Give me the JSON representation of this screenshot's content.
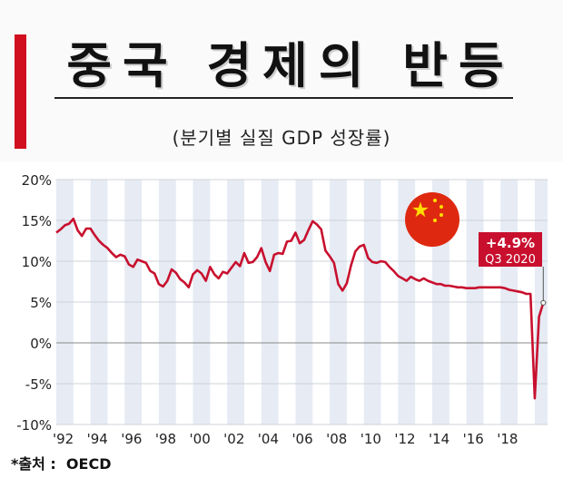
{
  "header": {
    "title": "중국 경제의 반등",
    "subtitle": "(분기별 실질 GDP 성장률)"
  },
  "footer": {
    "source": "*출처 :  OECD"
  },
  "colors": {
    "line": "#c8102e",
    "accent_bar": "#d0101e",
    "band": "#e6ebf4",
    "flag_red": "#de2910",
    "flag_star": "#ffde00"
  },
  "icons": {
    "flag": "china-flag-icon"
  },
  "chart_data": {
    "type": "line",
    "y_tick_labels": [
      "20%",
      "15%",
      "10%",
      "5%",
      "0%",
      "-5%",
      "-10%"
    ],
    "y_ticks": [
      20,
      15,
      10,
      5,
      0,
      -5,
      -10
    ],
    "ylim": [
      -10,
      20
    ],
    "x_tick_labels": [
      "'92",
      "'94",
      "'96",
      "'98",
      "'00",
      "'02",
      "'04",
      "'06",
      "'08",
      "'10",
      "'12",
      "'14",
      "'16",
      "'18"
    ],
    "x_ticks": [
      1992,
      1994,
      1996,
      1998,
      2000,
      2002,
      2004,
      2006,
      2008,
      2010,
      2012,
      2014,
      2016,
      2018
    ],
    "xlim": [
      1992,
      2020.75
    ],
    "annotation": {
      "value": "+4.9%",
      "period": "Q3 2020",
      "x": 2020.5,
      "y": 4.9
    },
    "grid": "horizontal",
    "series": [
      {
        "x": [
          1992,
          1992.25,
          1992.5,
          1992.75,
          1993,
          1993.25,
          1993.5,
          1993.75,
          1994,
          1994.25,
          1994.5,
          1994.75,
          1995,
          1995.25,
          1995.5,
          1995.75,
          1996,
          1996.25,
          1996.5,
          1996.75,
          1997,
          1997.25,
          1997.5,
          1997.75,
          1998,
          1998.25,
          1998.5,
          1998.75,
          1999,
          1999.25,
          1999.5,
          1999.75,
          2000,
          2000.25,
          2000.5,
          2000.75,
          2001,
          2001.25,
          2001.5,
          2001.75,
          2002,
          2002.25,
          2002.5,
          2002.75,
          2003,
          2003.25,
          2003.5,
          2003.75,
          2004,
          2004.25,
          2004.5,
          2004.75,
          2005,
          2005.25,
          2005.5,
          2005.75,
          2006,
          2006.25,
          2006.5,
          2006.75,
          2007,
          2007.25,
          2007.5,
          2007.75,
          2008,
          2008.25,
          2008.5,
          2008.75,
          2009,
          2009.25,
          2009.5,
          2009.75,
          2010,
          2010.25,
          2010.5,
          2010.75,
          2011,
          2011.25,
          2011.5,
          2011.75,
          2012,
          2012.25,
          2012.5,
          2012.75,
          2013,
          2013.25,
          2013.5,
          2013.75,
          2014,
          2014.25,
          2014.5,
          2014.75,
          2015,
          2015.25,
          2015.5,
          2015.75,
          2016,
          2016.25,
          2016.5,
          2016.75,
          2017,
          2017.25,
          2017.5,
          2017.75,
          2018,
          2018.25,
          2018.5,
          2018.75,
          2019,
          2019.25,
          2019.5,
          2019.75,
          2020,
          2020.25,
          2020.5
        ],
        "values": [
          13.5,
          13.9,
          14.4,
          14.6,
          15.2,
          13.8,
          13.1,
          14.0,
          14.0,
          13.2,
          12.5,
          12.0,
          11.6,
          11.0,
          10.5,
          10.8,
          10.6,
          9.6,
          9.3,
          10.2,
          10.0,
          9.8,
          8.8,
          8.5,
          7.2,
          6.9,
          7.6,
          9.0,
          8.6,
          7.8,
          7.4,
          6.8,
          8.4,
          8.9,
          8.5,
          7.6,
          9.3,
          8.4,
          7.9,
          8.7,
          8.5,
          9.2,
          9.9,
          9.4,
          11.0,
          9.8,
          9.9,
          10.5,
          11.6,
          9.9,
          8.8,
          10.8,
          11.0,
          10.9,
          12.4,
          12.5,
          13.5,
          12.2,
          12.6,
          13.8,
          14.9,
          14.5,
          13.9,
          11.3,
          10.6,
          9.8,
          7.2,
          6.4,
          7.3,
          9.5,
          11.2,
          11.8,
          12.0,
          10.4,
          9.9,
          9.8,
          10.0,
          9.9,
          9.3,
          8.8,
          8.2,
          7.9,
          7.6,
          8.1,
          7.8,
          7.6,
          7.9,
          7.6,
          7.4,
          7.2,
          7.2,
          7.0,
          7.0,
          6.9,
          6.8,
          6.8,
          6.7,
          6.7,
          6.7,
          6.8,
          6.8,
          6.8,
          6.8,
          6.8,
          6.8,
          6.7,
          6.5,
          6.4,
          6.3,
          6.2,
          6.0,
          6.0,
          -6.8,
          3.2,
          4.9
        ]
      }
    ]
  }
}
